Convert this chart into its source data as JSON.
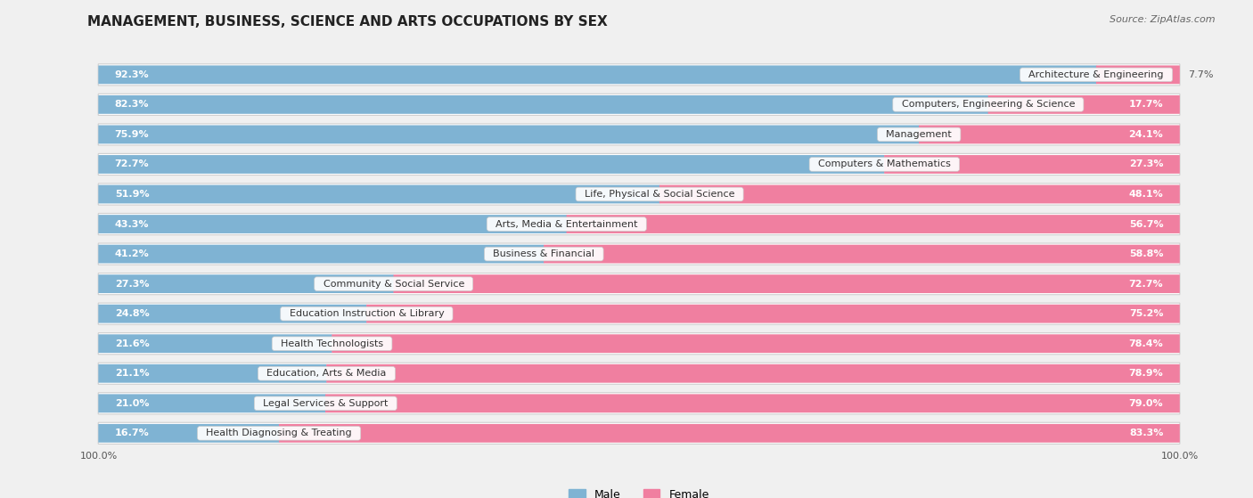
{
  "title": "MANAGEMENT, BUSINESS, SCIENCE AND ARTS OCCUPATIONS BY SEX",
  "source": "Source: ZipAtlas.com",
  "categories": [
    "Architecture & Engineering",
    "Computers, Engineering & Science",
    "Management",
    "Computers & Mathematics",
    "Life, Physical & Social Science",
    "Arts, Media & Entertainment",
    "Business & Financial",
    "Community & Social Service",
    "Education Instruction & Library",
    "Health Technologists",
    "Education, Arts & Media",
    "Legal Services & Support",
    "Health Diagnosing & Treating"
  ],
  "male_pct": [
    92.3,
    82.3,
    75.9,
    72.7,
    51.9,
    43.3,
    41.2,
    27.3,
    24.8,
    21.6,
    21.1,
    21.0,
    16.7
  ],
  "female_pct": [
    7.7,
    17.7,
    24.1,
    27.3,
    48.1,
    56.7,
    58.8,
    72.7,
    75.2,
    78.4,
    78.9,
    79.0,
    83.3
  ],
  "male_color": "#7fb3d3",
  "female_color": "#f07fa0",
  "background_color": "#f0f0f0",
  "row_background": "#ffffff",
  "row_border": "#d0d0d0",
  "legend_male": "Male",
  "legend_female": "Female",
  "title_fontsize": 11,
  "source_fontsize": 8,
  "bar_label_fontsize": 8,
  "category_fontsize": 8,
  "legend_fontsize": 9,
  "axis_label_fontsize": 8,
  "inside_threshold": 15
}
